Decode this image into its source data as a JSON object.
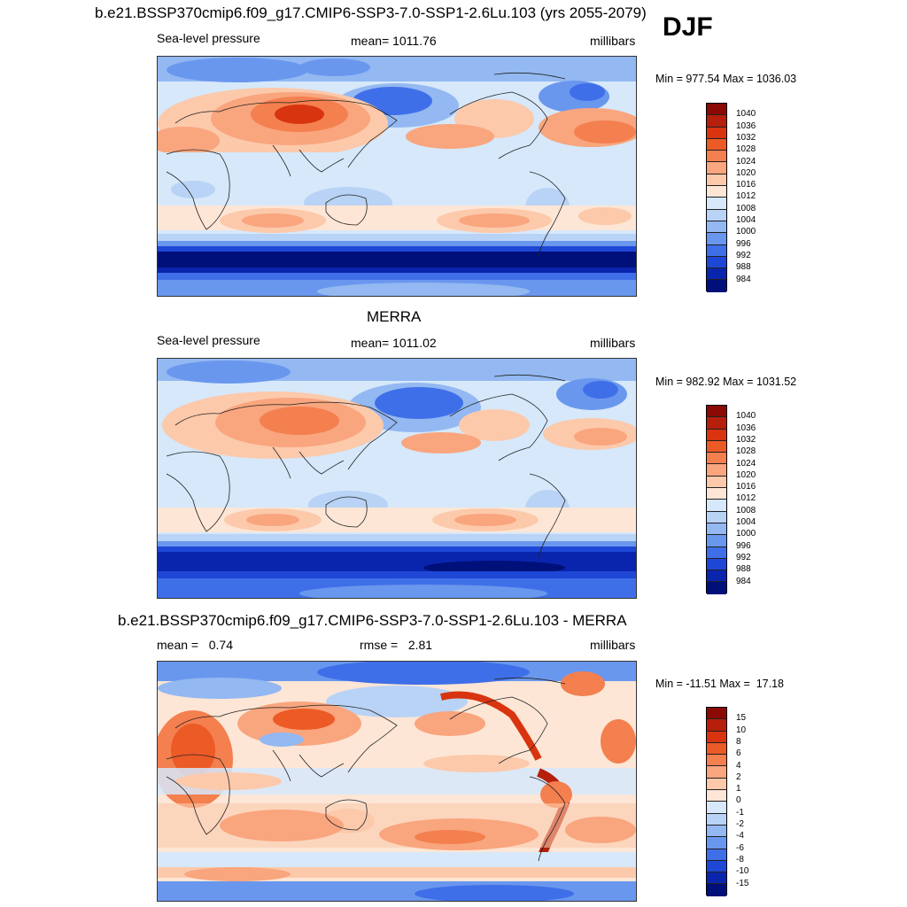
{
  "season": "DJF",
  "panel1": {
    "title": "b.e21.BSSP370cmip6.f09_g17.CMIP6-SSP3-7.0-SSP1-2.6Lu.103 (yrs 2055-2079)",
    "variable": "Sea-level pressure",
    "stat": "mean= 1011.76",
    "units": "millibars",
    "minmax": "Min = 977.54 Max = 1036.03"
  },
  "panel2": {
    "title": "MERRA",
    "variable": "Sea-level pressure",
    "stat": "mean= 1011.02",
    "units": "millibars",
    "minmax": "Min = 982.92 Max = 1031.52"
  },
  "panel3": {
    "title": "b.e21.BSSP370cmip6.f09_g17.CMIP6-SSP3-7.0-SSP1-2.6Lu.103 - MERRA",
    "stat_mean": "mean =   0.74",
    "stat_rmse": "rmse =   2.81",
    "units": "millibars",
    "minmax": "Min = -11.51 Max =  17.18"
  },
  "colorbar_abs": {
    "labels": [
      "1040",
      "1036",
      "1032",
      "1028",
      "1024",
      "1020",
      "1016",
      "1012",
      "1008",
      "1004",
      "1000",
      "996",
      "992",
      "988",
      "984"
    ],
    "colors": [
      "#8b0a05",
      "#b51f0c",
      "#d8340f",
      "#ec5a26",
      "#f47f4f",
      "#f9a57e",
      "#fcc9ab",
      "#fde6d6",
      "#d6e8fa",
      "#b9d3f6",
      "#93b8f2",
      "#6a97ee",
      "#3f6fe8",
      "#1e47d6",
      "#0a25ad",
      "#00107a"
    ]
  },
  "colorbar_diff": {
    "labels": [
      "15",
      "10",
      "8",
      "6",
      "4",
      "2",
      "1",
      "0",
      "-1",
      "-2",
      "-4",
      "-6",
      "-8",
      "-10",
      "-15"
    ],
    "colors": [
      "#8b0a05",
      "#b51f0c",
      "#d8340f",
      "#ec5a26",
      "#f47f4f",
      "#f9a57e",
      "#fcc9ab",
      "#fde6d6",
      "#d6e8fa",
      "#b9d3f6",
      "#93b8f2",
      "#6a97ee",
      "#3f6fe8",
      "#1e47d6",
      "#0a25ad",
      "#00107a"
    ]
  }
}
